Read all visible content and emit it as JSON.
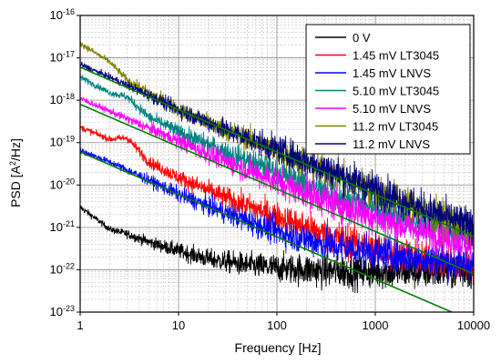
{
  "chart_data": {
    "type": "line",
    "xlabel": "Frequency [Hz]",
    "ylabel_main": "PSD [A",
    "ylabel_sup": "2",
    "ylabel_tail": "/Hz]",
    "xscale": "log",
    "yscale": "log",
    "xlim": [
      1,
      10000
    ],
    "ylim": [
      1e-23,
      1e-16
    ],
    "grid": true,
    "legend_position": "top-right",
    "x_ticks": [
      {
        "label": "1",
        "value": 1
      },
      {
        "label": "10",
        "value": 10
      },
      {
        "label": "100",
        "value": 100
      },
      {
        "label": "1000",
        "value": 1000
      },
      {
        "label": "10000",
        "value": 10000
      }
    ],
    "y_ticks": [
      {
        "base": "10",
        "exp": "-23",
        "value": 1e-23
      },
      {
        "base": "10",
        "exp": "-22",
        "value": 1e-22
      },
      {
        "base": "10",
        "exp": "-21",
        "value": 1e-21
      },
      {
        "base": "10",
        "exp": "-20",
        "value": 1e-20
      },
      {
        "base": "10",
        "exp": "-19",
        "value": 1e-19
      },
      {
        "base": "10",
        "exp": "-18",
        "value": 1e-18
      },
      {
        "base": "10",
        "exp": "-17",
        "value": 1e-17
      },
      {
        "base": "10",
        "exp": "-16",
        "value": 1e-16
      }
    ],
    "series": [
      {
        "name": "0 V",
        "color": "#000000",
        "points": [
          [
            1,
            3e-21
          ],
          [
            1.5,
            1.5e-21
          ],
          [
            2,
            9e-22
          ],
          [
            3,
            7e-22
          ],
          [
            5,
            4.5e-22
          ],
          [
            10,
            2.8e-22
          ],
          [
            20,
            1.8e-22
          ],
          [
            50,
            1.3e-22
          ],
          [
            100,
            1.1e-22
          ],
          [
            300,
            9.5e-23
          ],
          [
            1000,
            9e-23
          ],
          [
            3000,
            9e-23
          ],
          [
            10000,
            9e-23
          ]
        ]
      },
      {
        "name": "1.45 mV LT3045",
        "color": "#ff0000",
        "points": [
          [
            1,
            2.3e-19
          ],
          [
            2,
            1.2e-19
          ],
          [
            3,
            1.3e-19
          ],
          [
            5,
            3.5e-20
          ],
          [
            10,
            1.5e-20
          ],
          [
            30,
            5e-21
          ],
          [
            100,
            1.8e-21
          ],
          [
            300,
            7e-22
          ],
          [
            1000,
            3.2e-22
          ],
          [
            3000,
            1.8e-22
          ],
          [
            10000,
            1.2e-22
          ]
        ]
      },
      {
        "name": "1.45 mV LNVS",
        "color": "#0000ff",
        "points": [
          [
            1,
            6.5e-20
          ],
          [
            2,
            3.5e-20
          ],
          [
            5,
            1.3e-20
          ],
          [
            10,
            6e-21
          ],
          [
            30,
            2.2e-21
          ],
          [
            100,
            8e-22
          ],
          [
            300,
            4e-22
          ],
          [
            1000,
            2.6e-22
          ],
          [
            3000,
            1.8e-22
          ],
          [
            10000,
            1.3e-22
          ]
        ]
      },
      {
        "name": "5.10 mV LT3045",
        "color": "#008080",
        "points": [
          [
            1,
            3.5e-18
          ],
          [
            2,
            1.5e-18
          ],
          [
            3,
            1.2e-18
          ],
          [
            5,
            4e-19
          ],
          [
            10,
            1.8e-19
          ],
          [
            30,
            6e-20
          ],
          [
            100,
            2e-20
          ],
          [
            300,
            7e-21
          ],
          [
            1000,
            2.6e-21
          ],
          [
            3000,
            1.2e-21
          ],
          [
            10000,
            6e-22
          ]
        ]
      },
      {
        "name": "5.10 mV LNVS",
        "color": "#ff00ff",
        "points": [
          [
            1,
            1.1e-18
          ],
          [
            2,
            5.5e-19
          ],
          [
            5,
            2.2e-19
          ],
          [
            10,
            1.1e-19
          ],
          [
            30,
            3.6e-20
          ],
          [
            100,
            1.2e-20
          ],
          [
            300,
            4.5e-21
          ],
          [
            1000,
            1.7e-21
          ],
          [
            3000,
            8e-22
          ],
          [
            10000,
            4e-22
          ]
        ]
      },
      {
        "name": "11.2 mV LT3045",
        "color": "#808000",
        "points": [
          [
            1,
            2.2e-17
          ],
          [
            2,
            8e-18
          ],
          [
            3,
            3e-18
          ],
          [
            5,
            1.5e-18
          ],
          [
            10,
            6e-19
          ],
          [
            30,
            2e-19
          ],
          [
            100,
            6.5e-20
          ],
          [
            300,
            2.2e-20
          ],
          [
            1000,
            7.5e-21
          ],
          [
            3000,
            2.6e-21
          ],
          [
            10000,
            9e-22
          ]
        ]
      },
      {
        "name": "11.2 mV LNVS",
        "color": "#000080",
        "points": [
          [
            1,
            7e-18
          ],
          [
            2,
            3.5e-18
          ],
          [
            5,
            1.3e-18
          ],
          [
            10,
            6e-19
          ],
          [
            30,
            2e-19
          ],
          [
            100,
            7e-20
          ],
          [
            300,
            2.5e-20
          ],
          [
            1000,
            8e-21
          ],
          [
            3000,
            2.8e-21
          ],
          [
            10000,
            1e-21
          ]
        ]
      }
    ],
    "fit_lines": [
      {
        "color": "#008000",
        "points": [
          [
            1,
            6e-18
          ],
          [
            10000,
            6e-22
          ]
        ]
      },
      {
        "color": "#008000",
        "points": [
          [
            1,
            8e-19
          ],
          [
            10000,
            8e-23
          ]
        ]
      },
      {
        "color": "#008000",
        "points": [
          [
            1,
            6e-20
          ],
          [
            6000,
            1e-23
          ]
        ]
      }
    ]
  }
}
